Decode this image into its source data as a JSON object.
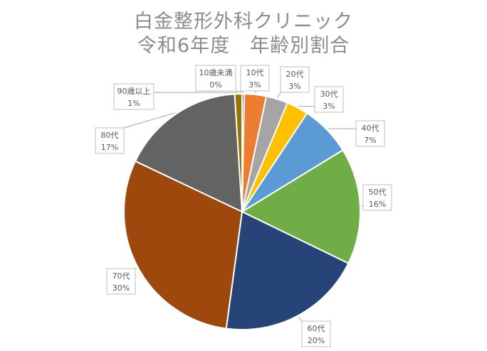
{
  "chart_data": {
    "type": "pie",
    "title": [
      "白金整形外科クリニック",
      "令和6年度　年齢別割合"
    ],
    "slices": [
      {
        "name": "10歳未満",
        "value": 0.3,
        "label": "0%",
        "color": "#4472C4"
      },
      {
        "name": "10代",
        "value": 3,
        "label": "3%",
        "color": "#ED7D31"
      },
      {
        "name": "20代",
        "value": 3,
        "label": "3%",
        "color": "#A5A5A5"
      },
      {
        "name": "30代",
        "value": 3,
        "label": "3%",
        "color": "#FFC000"
      },
      {
        "name": "40代",
        "value": 7,
        "label": "7%",
        "color": "#5B9BD5"
      },
      {
        "name": "50代",
        "value": 16,
        "label": "16%",
        "color": "#70AD47"
      },
      {
        "name": "60代",
        "value": 20,
        "label": "20%",
        "color": "#264478"
      },
      {
        "name": "70代",
        "value": 30,
        "label": "30%",
        "color": "#9E480E"
      },
      {
        "name": "80代",
        "value": 17,
        "label": "17%",
        "color": "#636363"
      },
      {
        "name": "90歳以上",
        "value": 1,
        "label": "1%",
        "color": "#997300"
      }
    ]
  }
}
